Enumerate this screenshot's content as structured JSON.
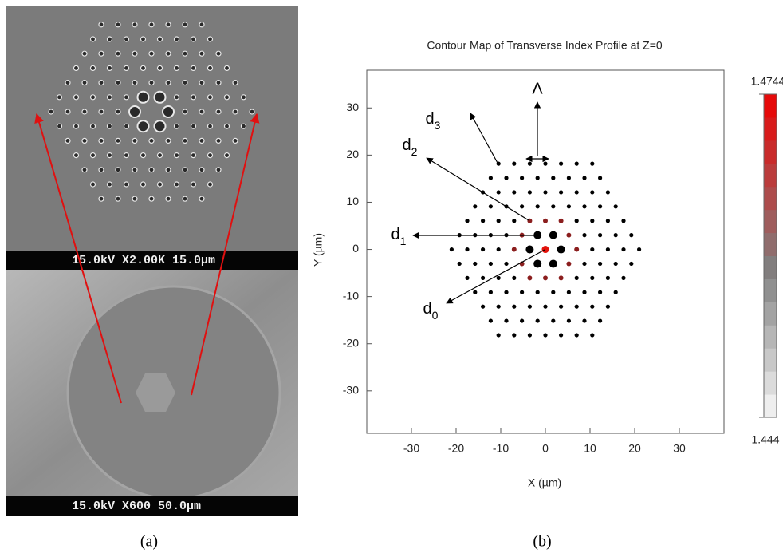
{
  "panel_a": {
    "top_image_label": "15.0kV X2.00K 15.0µm",
    "bottom_image_label": "15.0kV X600 50.0µm",
    "caption": "(a)"
  },
  "chart_data": {
    "type": "scatter",
    "title": "Contour Map of Transverse Index Profile at Z=0",
    "x_label": "X (µm)",
    "y_label": "Y (µm)",
    "caption": "(b)",
    "xlim": [
      -40,
      40
    ],
    "ylim": [
      -39,
      38
    ],
    "xticks": [
      -30,
      -20,
      -10,
      0,
      10,
      20,
      30
    ],
    "yticks": [
      -30,
      -20,
      -10,
      0,
      10,
      20,
      30
    ],
    "clim": [
      1.444,
      1.4744
    ],
    "annotations": [
      {
        "text": "d",
        "subscript": "0"
      },
      {
        "text": "d",
        "subscript": "1"
      },
      {
        "text": "d",
        "subscript": "2"
      },
      {
        "text": "d",
        "subscript": "3"
      },
      {
        "text": "Λ"
      }
    ],
    "series": [
      {
        "color": "#e3120b",
        "x": [
          0
        ],
        "y": [
          0
        ]
      },
      {
        "color": "#000000",
        "x": [
          3.5,
          -3.5,
          1.75,
          -1.75,
          1.75,
          -1.75
        ],
        "y": [
          0,
          0,
          3.03,
          3.03,
          -3.03,
          -3.03
        ]
      },
      {
        "color": "#8b1e1e",
        "x": [
          7,
          -7,
          5.25,
          -5.25,
          5.25,
          -5.25,
          3.5,
          -3.5,
          3.5,
          -3.5,
          0,
          0
        ],
        "y": [
          0,
          0,
          3.03,
          3.03,
          -3.03,
          -3.03,
          6.06,
          6.06,
          -6.06,
          -6.06,
          6.06,
          -6.06
        ]
      },
      {
        "color": "#000000",
        "x": [
          -10.5,
          -7,
          -3.5,
          0,
          3.5,
          7,
          10.5,
          -12.25,
          -8.75,
          -5.25,
          -1.75,
          1.75,
          5.25,
          8.75,
          12.25,
          -14,
          -10.5,
          -7,
          -3.5,
          0,
          3.5,
          7,
          10.5,
          14,
          -15.75,
          -12.25,
          -8.75,
          -5.25,
          -1.75,
          1.75,
          5.25,
          8.75,
          12.25,
          15.75,
          -17.5,
          -14,
          -10.5,
          -7,
          7,
          10.5,
          14,
          17.5,
          -19.25,
          -15.75,
          -12.25,
          -8.75,
          8.75,
          12.25,
          15.75,
          19.25,
          -21,
          -17.5,
          -14,
          -10.5,
          10.5,
          14,
          17.5,
          21,
          -19.25,
          -15.75,
          -12.25,
          -8.75,
          8.75,
          12.25,
          15.75,
          19.25,
          -17.5,
          -14,
          -10.5,
          -7,
          7,
          10.5,
          14,
          17.5,
          -15.75,
          -12.25,
          -8.75,
          -5.25,
          -1.75,
          1.75,
          5.25,
          8.75,
          12.25,
          15.75,
          -14,
          -10.5,
          -7,
          -3.5,
          0,
          3.5,
          7,
          10.5,
          14,
          -12.25,
          -8.75,
          -5.25,
          -1.75,
          1.75,
          5.25,
          8.75,
          12.25,
          -10.5,
          -7,
          -3.5,
          0,
          3.5,
          7,
          10.5
        ],
        "y": [
          18.18,
          18.18,
          18.18,
          18.18,
          18.18,
          18.18,
          18.18,
          15.15,
          15.15,
          15.15,
          15.15,
          15.15,
          15.15,
          15.15,
          15.15,
          12.12,
          12.12,
          12.12,
          12.12,
          12.12,
          12.12,
          12.12,
          12.12,
          12.12,
          9.09,
          9.09,
          9.09,
          9.09,
          9.09,
          9.09,
          9.09,
          9.09,
          9.09,
          9.09,
          6.06,
          6.06,
          6.06,
          6.06,
          6.06,
          6.06,
          6.06,
          6.06,
          3.03,
          3.03,
          3.03,
          3.03,
          3.03,
          3.03,
          3.03,
          3.03,
          0,
          0,
          0,
          0,
          0,
          0,
          0,
          0,
          -3.03,
          -3.03,
          -3.03,
          -3.03,
          -3.03,
          -3.03,
          -3.03,
          -3.03,
          -6.06,
          -6.06,
          -6.06,
          -6.06,
          -6.06,
          -6.06,
          -6.06,
          -6.06,
          -9.09,
          -9.09,
          -9.09,
          -9.09,
          -9.09,
          -9.09,
          -9.09,
          -9.09,
          -9.09,
          -9.09,
          -12.12,
          -12.12,
          -12.12,
          -12.12,
          -12.12,
          -12.12,
          -12.12,
          -12.12,
          -12.12,
          -15.15,
          -15.15,
          -15.15,
          -15.15,
          -15.15,
          -15.15,
          -15.15,
          -15.15,
          -18.18,
          -18.18,
          -18.18,
          -18.18,
          -18.18,
          -18.18,
          -18.18
        ]
      }
    ]
  }
}
